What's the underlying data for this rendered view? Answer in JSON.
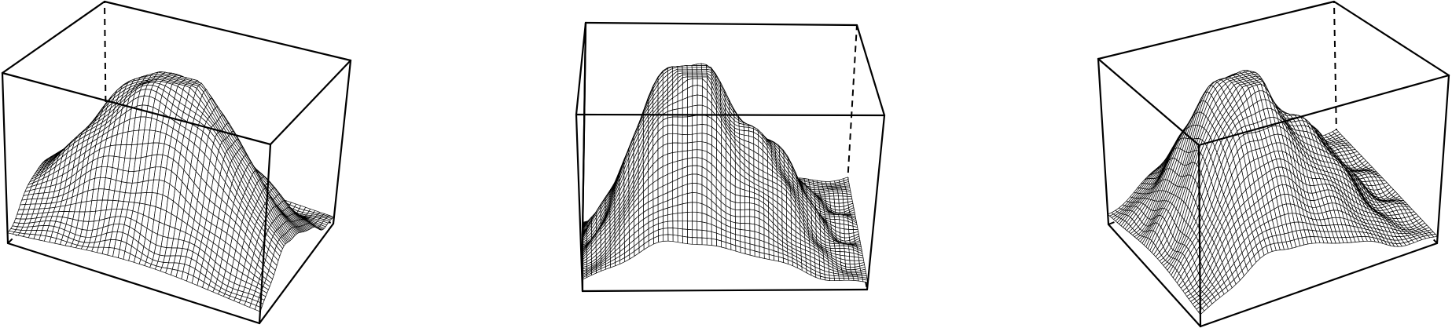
{
  "chart_data": {
    "type": "surface",
    "render": "wireframe-perspective",
    "title": "",
    "xlabel": "",
    "ylabel": "",
    "zlabel": "",
    "grid": false,
    "axes_ticks": false,
    "colors": {
      "mesh_line": "#000000",
      "mesh_fill": "#ffffff",
      "box": "#000000"
    },
    "mesh_resolution": {
      "x": 60,
      "y": 48
    },
    "x_range": [
      0,
      1
    ],
    "y_range": [
      0,
      1
    ],
    "zlim": [
      0,
      1
    ],
    "surface_model": {
      "base": 0.04,
      "bumps": [
        {
          "x": 0.3,
          "y": 0.5,
          "height": 0.78,
          "sx": 0.1,
          "sy": 0.3
        },
        {
          "x": 0.44,
          "y": 0.5,
          "height": 0.58,
          "sx": 0.07,
          "sy": 0.28
        },
        {
          "x": 0.58,
          "y": 0.48,
          "height": 0.46,
          "sx": 0.08,
          "sy": 0.3
        },
        {
          "x": 0.72,
          "y": 0.5,
          "height": 0.34,
          "sx": 0.09,
          "sy": 0.28
        },
        {
          "x": 0.15,
          "y": 0.48,
          "height": 0.22,
          "sx": 0.1,
          "sy": 0.32
        }
      ],
      "ripple": {
        "amplitude": 0.035,
        "fx": 9,
        "fy": 7
      }
    },
    "panels": [
      {
        "view": "left-oblique"
      },
      {
        "view": "front"
      },
      {
        "view": "right-oblique"
      }
    ]
  }
}
